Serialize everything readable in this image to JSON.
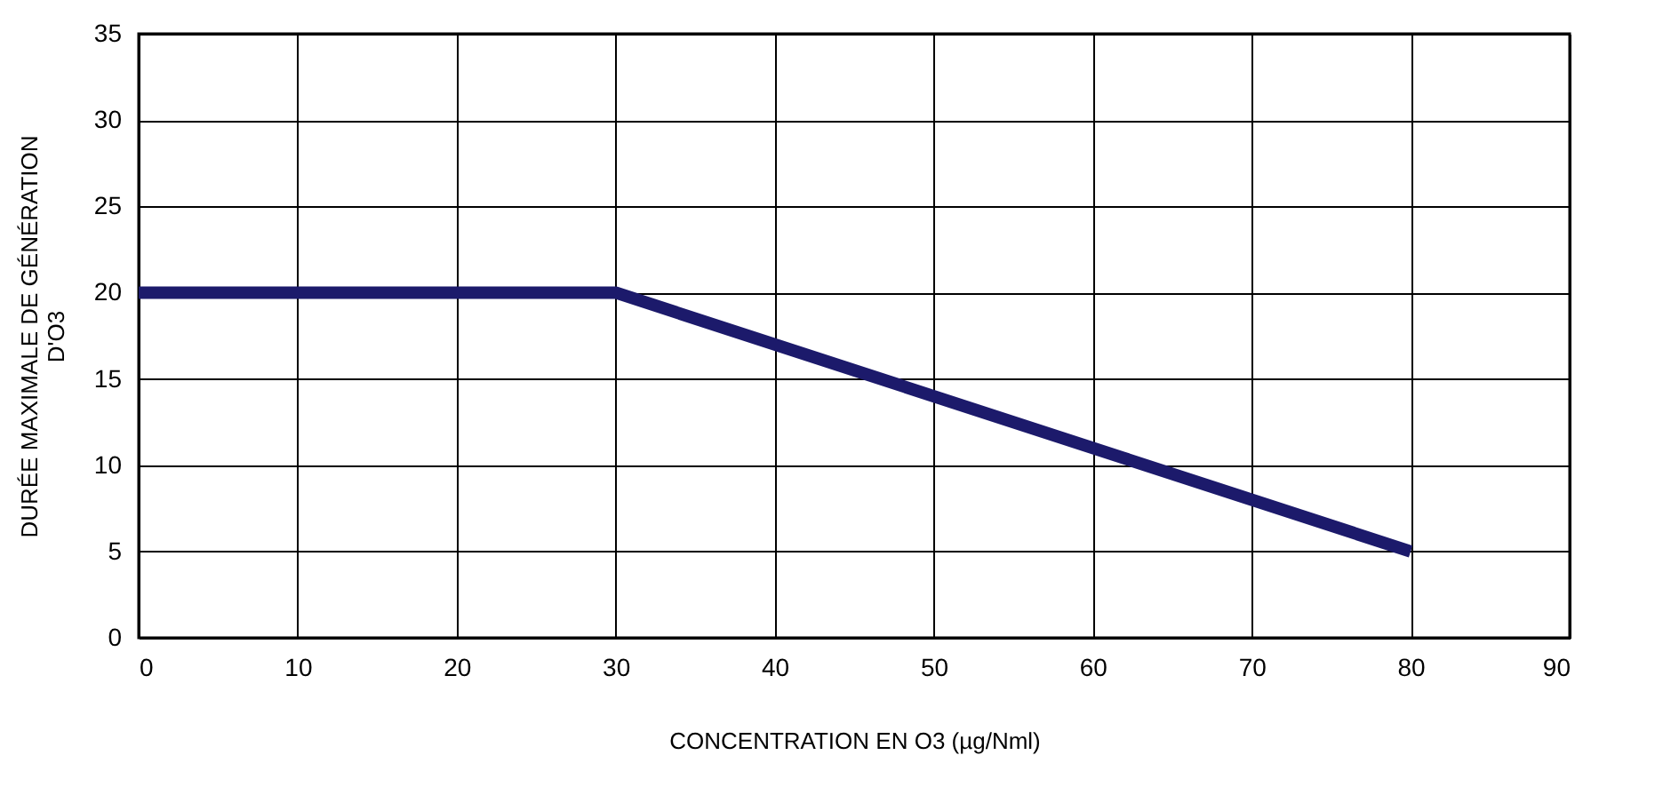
{
  "chart_data": {
    "type": "line",
    "xlabel": "CONCENTRATION EN O3 (µg/Nml)",
    "ylabel": "DURÉE MAXIMALE DE GÉNÉRATION D'O3",
    "x": [
      0,
      30,
      80
    ],
    "series": [
      {
        "color": "#1c1a6b",
        "values": [
          20,
          20,
          5
        ]
      }
    ],
    "xlim": [
      0,
      90
    ],
    "xticks": [
      0,
      10,
      20,
      30,
      40,
      50,
      60,
      70,
      80,
      90
    ],
    "ylim": [
      0,
      35
    ],
    "yticks": [
      0,
      5,
      10,
      15,
      20,
      25,
      30,
      35
    ],
    "grid": true,
    "marker": "none",
    "line_style": "solid"
  }
}
